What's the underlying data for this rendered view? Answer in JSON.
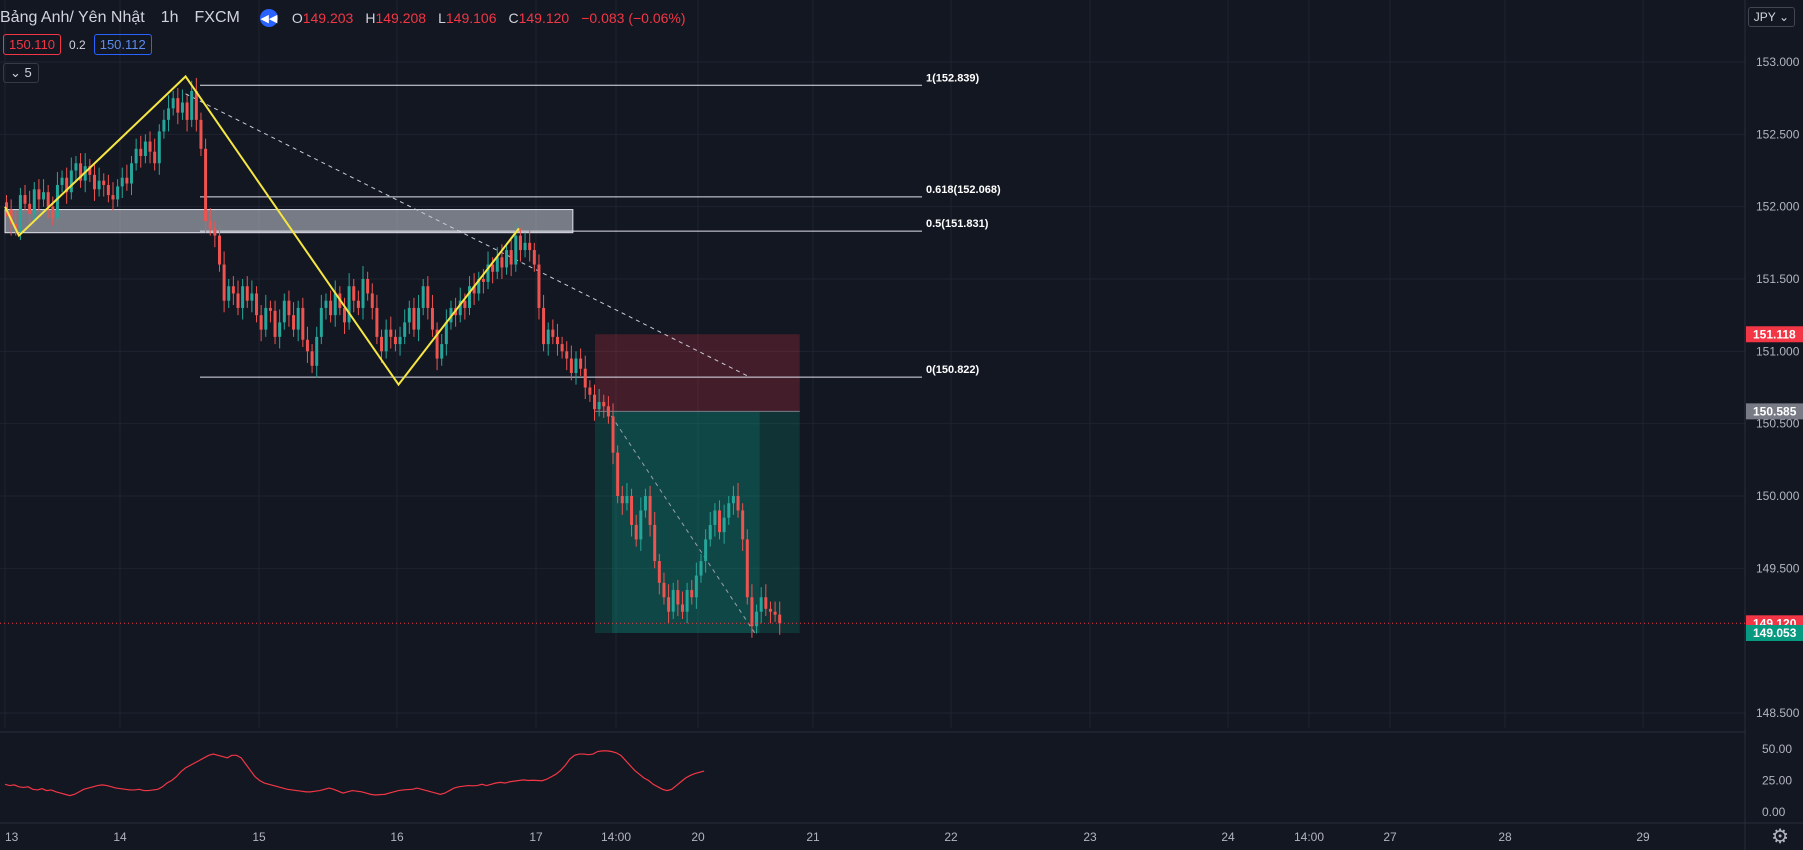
{
  "header": {
    "symbol": "Bảng Anh/ Yên Nhật",
    "timeframe": "1h",
    "exchange": "FXCM",
    "open_label": "O",
    "open": "149.203",
    "high_label": "H",
    "high": "149.208",
    "low_label": "L",
    "low": "149.106",
    "close_label": "C",
    "close": "149.120",
    "change": "−0.083 (−0.06%)"
  },
  "quote": {
    "bid": "150.110",
    "spread": "0.2",
    "ask": "150.112"
  },
  "collapse_label": "5",
  "currency": "JPY",
  "colors": {
    "background": "#131722",
    "up": "#26a69a",
    "down": "#ef5350",
    "pattern": "#f5e642",
    "rsi": "#f23645",
    "grid": "#1f2330"
  },
  "chart_data": {
    "type": "candlestick",
    "title": "",
    "xlabel": "",
    "ylabel": "",
    "x_ticks": [
      "13",
      "14",
      "15",
      "16",
      "17",
      "14:00",
      "20",
      "21",
      "22",
      "23",
      "24",
      "14:00",
      "27",
      "28",
      "29"
    ],
    "y_ticks": [
      "153.000",
      "152.500",
      "152.000",
      "151.500",
      "151.000",
      "150.500",
      "150.000",
      "149.500",
      "148.500"
    ],
    "ylim": [
      148.4,
      153.2
    ],
    "grid": true,
    "price_labels": {
      "current": "149.120",
      "bid_line": "151.118",
      "entry": "150.585",
      "low": "149.053"
    },
    "fib_levels": [
      {
        "label": "1(152.839)",
        "value": 152.839
      },
      {
        "label": "0.618(152.068)",
        "value": 152.068
      },
      {
        "label": "0.5(151.831)",
        "value": 151.831
      },
      {
        "label": "0(150.822)",
        "value": 150.822
      }
    ],
    "zigzag": [
      {
        "bar": 0,
        "value": 152.0
      },
      {
        "bar": 3,
        "value": 151.8
      },
      {
        "bar": 39,
        "value": 152.9
      },
      {
        "bar": 85,
        "value": 150.77
      },
      {
        "bar": 111,
        "value": 151.85
      }
    ],
    "trend_line": {
      "from_bar": 39,
      "from_value": 152.78,
      "to_bar": 161,
      "to_value": 150.82
    },
    "target_line": {
      "from_bar": 130,
      "from_value": 150.6,
      "to_bar": 162,
      "to_value": 149.05
    },
    "resistance_zone": {
      "from_bar": 0,
      "to_bar": 122,
      "top": 151.98,
      "bottom": 151.82
    },
    "position": {
      "from_bar": 127,
      "to_bar": 171,
      "entry": 150.585,
      "stop": 151.118,
      "target": 149.053
    },
    "candles": {
      "closes": [
        151.98,
        151.88,
        151.85,
        152.08,
        152.02,
        151.95,
        152.12,
        152.05,
        152.1,
        152.0,
        151.92,
        152.15,
        152.2,
        152.1,
        152.25,
        152.3,
        152.18,
        152.28,
        152.22,
        152.12,
        152.18,
        152.15,
        152.08,
        152.05,
        152.14,
        152.2,
        152.16,
        152.3,
        152.4,
        152.35,
        152.45,
        152.38,
        152.3,
        152.52,
        152.6,
        152.68,
        152.75,
        152.65,
        152.72,
        152.6,
        152.8,
        152.6,
        152.4,
        151.9,
        151.85,
        151.8,
        151.6,
        151.35,
        151.45,
        151.4,
        151.3,
        151.45,
        151.35,
        151.4,
        151.25,
        151.15,
        151.3,
        151.28,
        151.1,
        151.2,
        151.35,
        151.25,
        151.15,
        151.3,
        151.08,
        151.0,
        150.9,
        151.1,
        151.3,
        151.35,
        151.25,
        151.4,
        151.3,
        151.2,
        151.45,
        151.35,
        151.3,
        151.5,
        151.4,
        151.3,
        151.1,
        151.0,
        151.15,
        151.1,
        151.05,
        151.1,
        151.2,
        151.3,
        151.15,
        151.3,
        151.45,
        151.3,
        151.15,
        150.95,
        151.05,
        151.2,
        151.3,
        151.25,
        151.35,
        151.3,
        151.45,
        151.4,
        151.5,
        151.48,
        151.6,
        151.55,
        151.65,
        151.58,
        151.7,
        151.6,
        151.8,
        151.7,
        151.75,
        151.7,
        151.6,
        151.3,
        151.05,
        151.15,
        151.1,
        151.05,
        151.0,
        150.95,
        150.85,
        150.95,
        150.88,
        150.75,
        150.7,
        150.6,
        150.65,
        150.62,
        150.55,
        150.3,
        150.0,
        149.95,
        150.0,
        149.8,
        149.7,
        149.9,
        150.0,
        149.8,
        149.55,
        149.4,
        149.3,
        149.2,
        149.35,
        149.25,
        149.2,
        149.35,
        149.3,
        149.45,
        149.55,
        149.7,
        149.8,
        149.9,
        149.75,
        149.85,
        149.95,
        150.0,
        149.9,
        149.7,
        149.3,
        149.1,
        149.2,
        149.3,
        149.22,
        149.2,
        149.18,
        149.12
      ]
    },
    "rsi": {
      "y_ticks": [
        "50.00",
        "25.00",
        "0.00"
      ],
      "ylim": [
        0,
        60
      ],
      "values": [
        22,
        21,
        21.5,
        20,
        19.5,
        20,
        18,
        17.5,
        18.5,
        17,
        17.5,
        16,
        15,
        14,
        13,
        14,
        16,
        18,
        19,
        20,
        21,
        21.5,
        21,
        20,
        19,
        18.5,
        18,
        17.5,
        17.5,
        18,
        17,
        17,
        17.5,
        18,
        20,
        23,
        25,
        28,
        32,
        35,
        37,
        39,
        41,
        43,
        45,
        46,
        45,
        44,
        43,
        45,
        45,
        43,
        38,
        33,
        28,
        25,
        23,
        22,
        21,
        20,
        19,
        18,
        17.5,
        17,
        16.5,
        16,
        16,
        16.5,
        17,
        18,
        19,
        18,
        16.5,
        15,
        16,
        17,
        16.5,
        16,
        15,
        14,
        13.5,
        13.8,
        14,
        15,
        16,
        17,
        17.5,
        17.8,
        18,
        19,
        18,
        17,
        16,
        15,
        14,
        15,
        17,
        19,
        20,
        20.5,
        21,
        20.8,
        21,
        22,
        21,
        22,
        23,
        23.5,
        23,
        24,
        24.5,
        25,
        25.5,
        25,
        25.2,
        25,
        24.8,
        26,
        28,
        30,
        33,
        37,
        42,
        45,
        46,
        46,
        45.5,
        46,
        48,
        48.5,
        48.5,
        48,
        47,
        45,
        41,
        37,
        33,
        30,
        27,
        25,
        22,
        20,
        18,
        17,
        18,
        21,
        24,
        27,
        29,
        30.5,
        31.5,
        32.5
      ]
    }
  }
}
